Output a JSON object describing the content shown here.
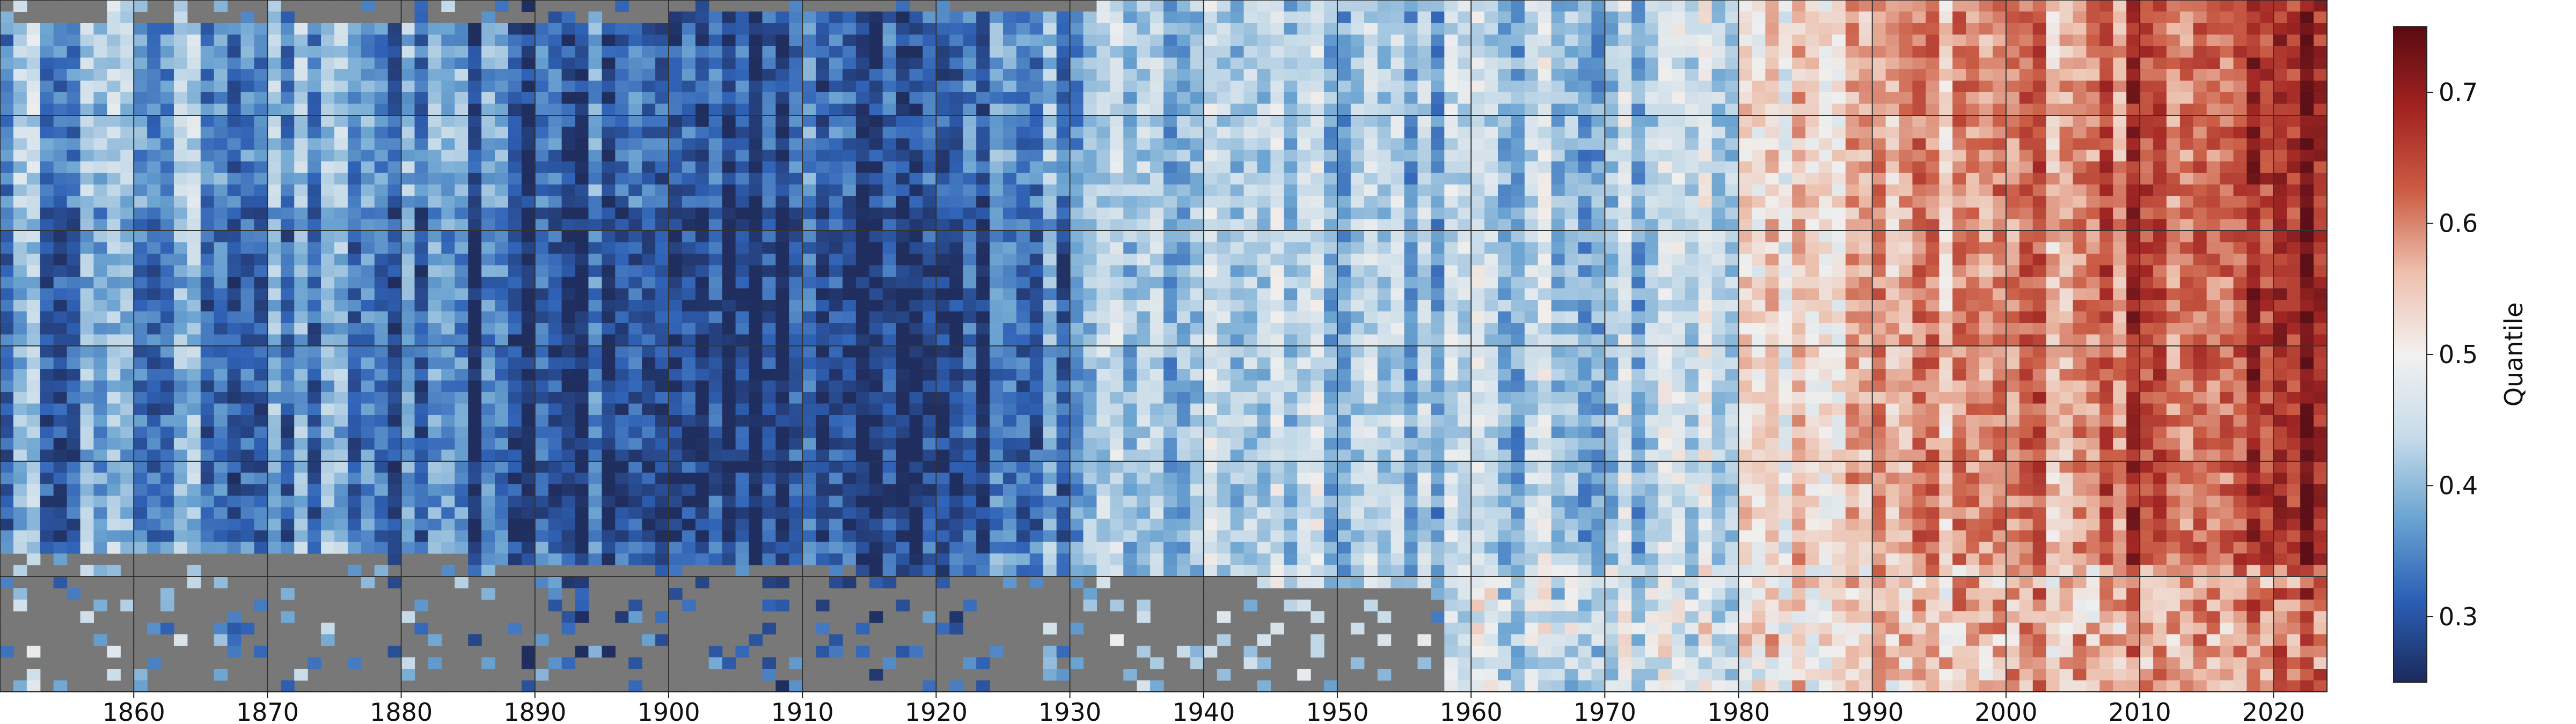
{
  "chart_data": {
    "type": "heatmap",
    "title": "",
    "xlabel": "",
    "ylabel": "",
    "x_ticks": [
      1860,
      1870,
      1880,
      1890,
      1900,
      1910,
      1920,
      1930,
      1940,
      1950,
      1960,
      1970,
      1980,
      1990,
      2000,
      2010,
      2020
    ],
    "xlim": [
      1850,
      2024
    ],
    "grid": true,
    "missing_color": "#767676",
    "colorbar": {
      "label": "Quantile",
      "ticks": [
        "0.3",
        "0.4",
        "0.5",
        "0.6",
        "0.7"
      ],
      "range": [
        0.25,
        0.75
      ],
      "cmap": [
        "#1b2a5c",
        "#2b5fb6",
        "#6aa4d2",
        "#c7dcea",
        "#f2f1f0",
        "#eec0ad",
        "#cc5c44",
        "#a32320",
        "#5a0a12"
      ]
    },
    "decade_mean_quantile": [
      {
        "decade": 1850,
        "value": 0.39
      },
      {
        "decade": 1860,
        "value": 0.38
      },
      {
        "decade": 1870,
        "value": 0.37
      },
      {
        "decade": 1880,
        "value": 0.33
      },
      {
        "decade": 1890,
        "value": 0.31
      },
      {
        "decade": 1900,
        "value": 0.31
      },
      {
        "decade": 1910,
        "value": 0.32
      },
      {
        "decade": 1920,
        "value": 0.35
      },
      {
        "decade": 1930,
        "value": 0.4
      },
      {
        "decade": 1940,
        "value": 0.45
      },
      {
        "decade": 1950,
        "value": 0.42
      },
      {
        "decade": 1960,
        "value": 0.41
      },
      {
        "decade": 1970,
        "value": 0.44
      },
      {
        "decade": 1980,
        "value": 0.53
      },
      {
        "decade": 1990,
        "value": 0.57
      },
      {
        "decade": 2000,
        "value": 0.62
      },
      {
        "decade": 2010,
        "value": 0.66
      },
      {
        "decade": 2020,
        "value": 0.7
      }
    ]
  }
}
